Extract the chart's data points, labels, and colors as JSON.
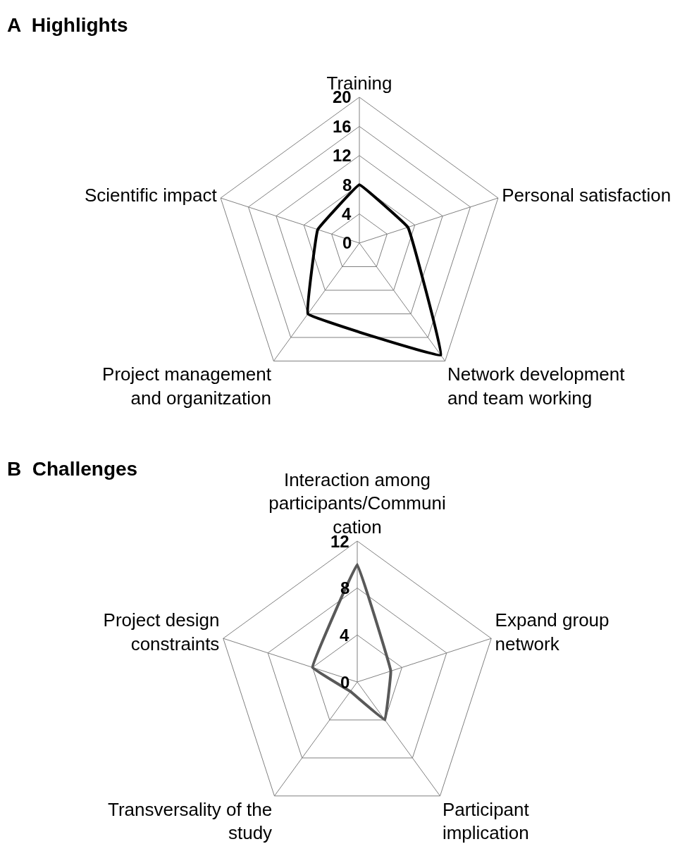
{
  "chart_data": [
    {
      "type": "radar",
      "title": "A  Highlights",
      "categories": [
        "Training",
        "Personal satisfaction",
        "Network development\nand team working",
        "Project management\nand organitzation",
        "Scientific impact"
      ],
      "series": [
        {
          "color": "#000000",
          "values": [
            8,
            7,
            19,
            12,
            6
          ]
        }
      ],
      "ylim": [
        0,
        20
      ],
      "yticks": [
        0,
        4,
        8,
        12,
        16,
        20
      ],
      "grid": true,
      "marker": "none",
      "line_style": "solid"
    },
    {
      "type": "radar",
      "title": "B  Challenges",
      "categories": [
        "Interaction among\nparticipants/Communi\ncation",
        "Expand group\nnetwork",
        "Participant\nimplication",
        "Transversality of the\nstudy",
        "Project design\nconstraints"
      ],
      "series": [
        {
          "color": "#595959",
          "values": [
            10,
            3,
            4,
            1,
            4
          ]
        }
      ],
      "ylim": [
        0,
        12
      ],
      "yticks": [
        0,
        4,
        8,
        12
      ],
      "grid": true,
      "marker": "none",
      "line_style": "solid"
    }
  ]
}
